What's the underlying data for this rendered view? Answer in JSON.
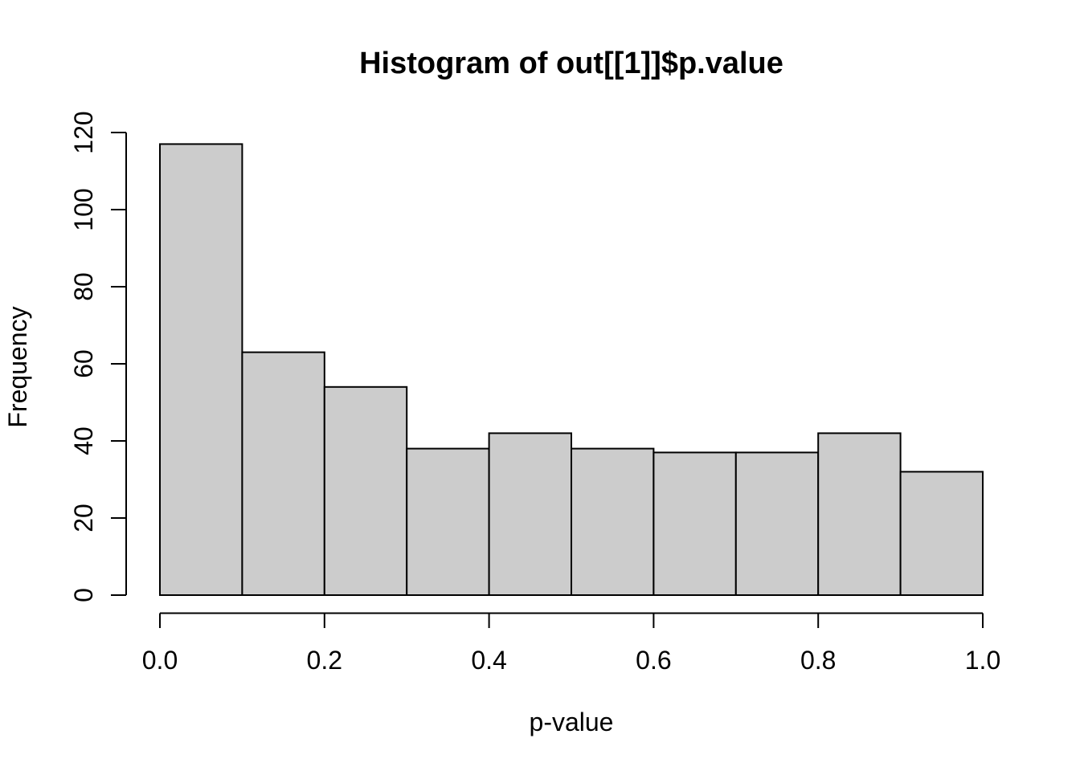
{
  "chart_data": {
    "type": "bar",
    "chart_kind": "histogram",
    "title": "Histogram of out[[1]]$p.value",
    "xlabel": "p-value",
    "ylabel": "Frequency",
    "bin_width": 0.1,
    "bin_edges": [
      0.0,
      0.1,
      0.2,
      0.3,
      0.4,
      0.5,
      0.6,
      0.7,
      0.8,
      0.9,
      1.0
    ],
    "categories": [
      "0.0-0.1",
      "0.1-0.2",
      "0.2-0.3",
      "0.3-0.4",
      "0.4-0.5",
      "0.5-0.6",
      "0.6-0.7",
      "0.7-0.8",
      "0.8-0.9",
      "0.9-1.0"
    ],
    "values": [
      117,
      63,
      54,
      38,
      42,
      38,
      37,
      37,
      42,
      32
    ],
    "xlim": [
      0.0,
      1.0
    ],
    "ylim": [
      0,
      120
    ],
    "x_tick_values": [
      0.0,
      0.2,
      0.4,
      0.6,
      0.8,
      1.0
    ],
    "x_tick_labels": [
      "0.0",
      "0.2",
      "0.4",
      "0.6",
      "0.8",
      "1.0"
    ],
    "y_tick_values": [
      0,
      20,
      40,
      60,
      80,
      100,
      120
    ],
    "y_tick_labels": [
      "0",
      "20",
      "40",
      "60",
      "80",
      "100",
      "120"
    ],
    "grid": false,
    "legend_position": "none",
    "colors": {
      "bar_fill": "#CCCCCC",
      "bar_border": "#000000",
      "axis": "#000000",
      "text": "#000000",
      "background": "#FFFFFF"
    }
  }
}
